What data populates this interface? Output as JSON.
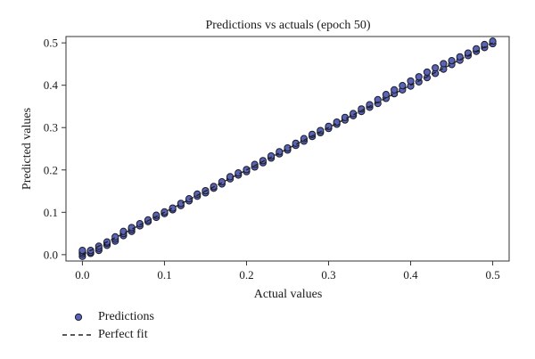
{
  "chart_data": {
    "type": "scatter",
    "title": "Predictions vs actuals (epoch 50)",
    "xlabel": "Actual values",
    "ylabel": "Predicted values",
    "xlim": [
      -0.02,
      0.52
    ],
    "ylim": [
      -0.015,
      0.515
    ],
    "xticks": [
      0.0,
      0.1,
      0.2,
      0.3,
      0.4,
      0.5
    ],
    "yticks": [
      0.0,
      0.1,
      0.2,
      0.3,
      0.4,
      0.5
    ],
    "xtick_labels": [
      "0.0",
      "0.1",
      "0.2",
      "0.3",
      "0.4",
      "0.5"
    ],
    "ytick_labels": [
      "0.0",
      "0.1",
      "0.2",
      "0.3",
      "0.4",
      "0.5"
    ],
    "grid": false,
    "legend": "below-left",
    "series": [
      {
        "name": "Predictions",
        "kind": "scatter",
        "color": "#5a64b4",
        "edge_color": "#1a1a2e",
        "x": [
          0.0,
          0.0,
          0.0,
          0.0,
          0.01,
          0.01,
          0.01,
          0.02,
          0.02,
          0.02,
          0.03,
          0.03,
          0.03,
          0.04,
          0.04,
          0.04,
          0.05,
          0.05,
          0.05,
          0.06,
          0.06,
          0.06,
          0.07,
          0.07,
          0.08,
          0.08,
          0.09,
          0.09,
          0.1,
          0.1,
          0.11,
          0.11,
          0.12,
          0.12,
          0.13,
          0.13,
          0.14,
          0.14,
          0.15,
          0.15,
          0.16,
          0.16,
          0.17,
          0.17,
          0.18,
          0.18,
          0.19,
          0.19,
          0.2,
          0.2,
          0.21,
          0.21,
          0.22,
          0.22,
          0.23,
          0.23,
          0.24,
          0.24,
          0.25,
          0.25,
          0.26,
          0.26,
          0.27,
          0.27,
          0.28,
          0.28,
          0.29,
          0.29,
          0.3,
          0.3,
          0.31,
          0.31,
          0.32,
          0.32,
          0.33,
          0.33,
          0.34,
          0.34,
          0.35,
          0.35,
          0.36,
          0.36,
          0.37,
          0.37,
          0.38,
          0.38,
          0.39,
          0.39,
          0.4,
          0.4,
          0.41,
          0.41,
          0.42,
          0.42,
          0.43,
          0.43,
          0.44,
          0.44,
          0.45,
          0.45,
          0.46,
          0.46,
          0.47,
          0.47,
          0.48,
          0.48,
          0.49,
          0.49,
          0.5,
          0.5
        ],
        "y": [
          -0.004,
          0.002,
          0.006,
          0.01,
          0.003,
          0.006,
          0.01,
          0.01,
          0.015,
          0.02,
          0.022,
          0.027,
          0.03,
          0.032,
          0.037,
          0.042,
          0.045,
          0.05,
          0.055,
          0.055,
          0.06,
          0.064,
          0.068,
          0.073,
          0.078,
          0.082,
          0.088,
          0.093,
          0.097,
          0.101,
          0.106,
          0.11,
          0.116,
          0.121,
          0.127,
          0.132,
          0.138,
          0.143,
          0.146,
          0.151,
          0.157,
          0.161,
          0.167,
          0.172,
          0.179,
          0.184,
          0.188,
          0.193,
          0.196,
          0.201,
          0.207,
          0.213,
          0.217,
          0.222,
          0.228,
          0.233,
          0.238,
          0.243,
          0.247,
          0.252,
          0.258,
          0.263,
          0.268,
          0.274,
          0.279,
          0.284,
          0.288,
          0.293,
          0.298,
          0.303,
          0.308,
          0.313,
          0.318,
          0.324,
          0.328,
          0.333,
          0.338,
          0.344,
          0.348,
          0.354,
          0.357,
          0.366,
          0.369,
          0.378,
          0.38,
          0.389,
          0.389,
          0.399,
          0.398,
          0.41,
          0.408,
          0.42,
          0.418,
          0.431,
          0.428,
          0.441,
          0.438,
          0.451,
          0.449,
          0.458,
          0.459,
          0.467,
          0.47,
          0.476,
          0.48,
          0.486,
          0.489,
          0.496,
          0.498,
          0.504
        ]
      },
      {
        "name": "Perfect fit",
        "kind": "line",
        "style": "dashed",
        "color": "#222222",
        "x": [
          0.0,
          0.5
        ],
        "y": [
          0.0,
          0.5
        ]
      }
    ]
  }
}
